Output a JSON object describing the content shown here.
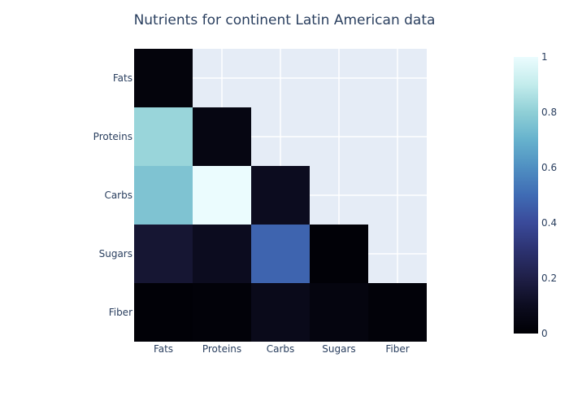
{
  "chart_data": {
    "type": "heatmap",
    "title": "Nutrients for continent Latin American data",
    "x_categories": [
      "Fats",
      "Proteins",
      "Carbs",
      "Sugars",
      "Fiber"
    ],
    "y_categories": [
      "Fats",
      "Proteins",
      "Carbs",
      "Sugars",
      "Fiber"
    ],
    "matrix": [
      [
        0.03,
        null,
        null,
        null,
        null
      ],
      [
        0.82,
        0.05,
        null,
        null,
        null
      ],
      [
        0.76,
        1.0,
        0.1,
        null,
        null
      ],
      [
        0.15,
        0.1,
        0.48,
        0.01,
        null
      ],
      [
        0.01,
        0.02,
        0.08,
        0.04,
        0.02
      ]
    ],
    "colorbar": {
      "min": 0,
      "max": 1,
      "ticks": [
        "0",
        "0.2",
        "0.4",
        "0.6",
        "0.8",
        "1"
      ],
      "colorscale": [
        [
          0.0,
          "#000004"
        ],
        [
          0.1,
          "#0c0c1f"
        ],
        [
          0.2,
          "#1f1f47"
        ],
        [
          0.3,
          "#2c3270"
        ],
        [
          0.4,
          "#3a4a9a"
        ],
        [
          0.5,
          "#3f6bb4"
        ],
        [
          0.6,
          "#4f8fc2"
        ],
        [
          0.7,
          "#66b2cd"
        ],
        [
          0.8,
          "#8fcfd6"
        ],
        [
          0.9,
          "#c3ecec"
        ],
        [
          1.0,
          "#ebfcfe"
        ]
      ]
    },
    "background_color": "#e5ecf6",
    "grid": true
  }
}
